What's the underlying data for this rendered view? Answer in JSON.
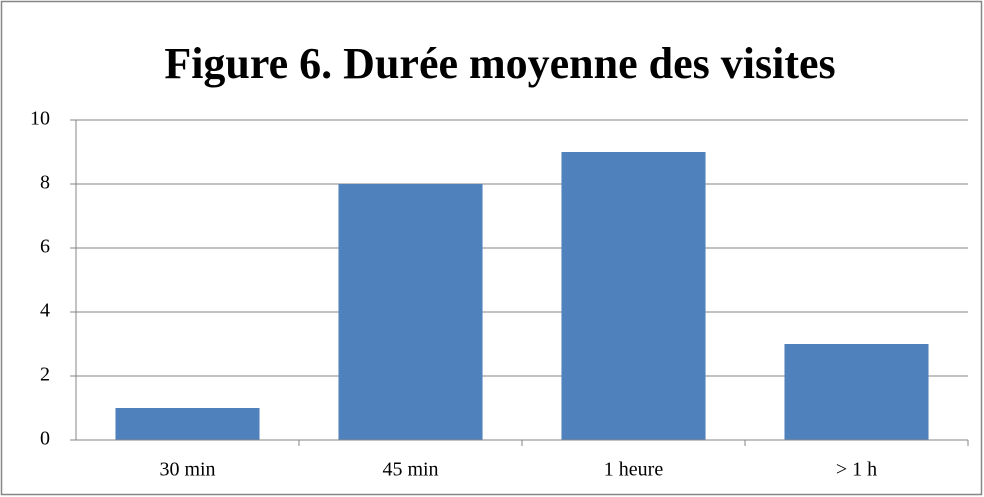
{
  "chart_data": {
    "type": "bar",
    "title": "Figure 6. Durée moyenne des visites",
    "categories": [
      "30 min",
      "45 min",
      "1 heure",
      "> 1 h"
    ],
    "values": [
      1,
      8,
      9,
      3
    ],
    "color": "#4f81bd",
    "ylim": [
      0,
      10
    ],
    "yticks": [
      0,
      2,
      4,
      6,
      8,
      10
    ],
    "grid": true
  }
}
